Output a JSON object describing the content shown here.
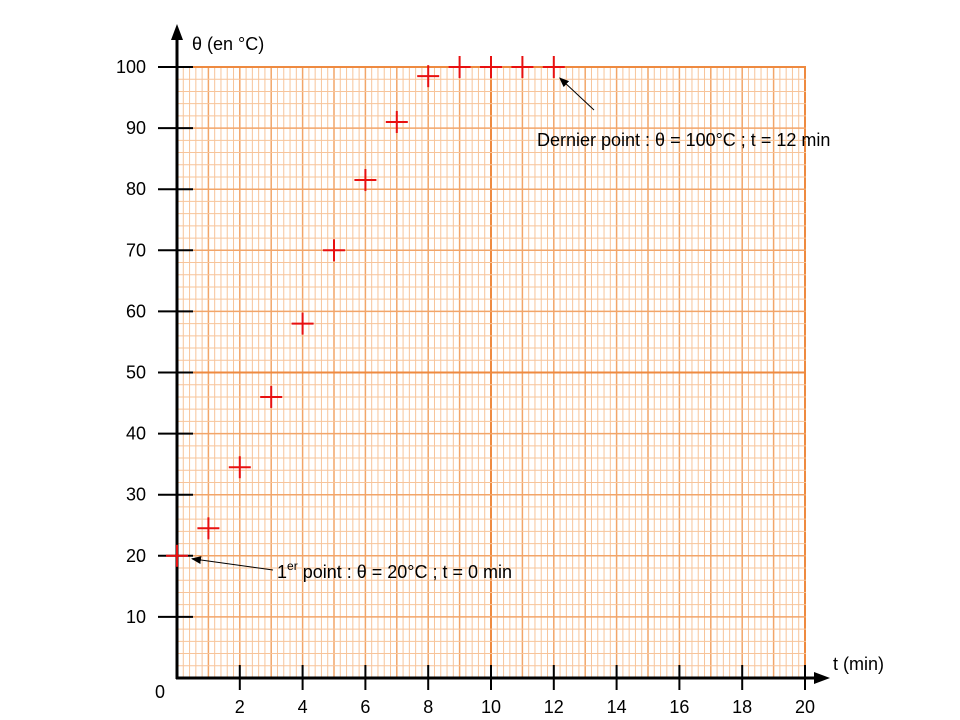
{
  "chart_data": {
    "type": "scatter",
    "title": "",
    "xlabel": "t (min)",
    "ylabel": "θ (en °C)",
    "xlim": [
      0,
      20
    ],
    "ylim": [
      0,
      100
    ],
    "origin_label": "0",
    "x_tick_values": [
      2,
      4,
      6,
      8,
      10,
      12,
      14,
      16,
      18,
      20
    ],
    "x_tick_labels": [
      "2",
      "4",
      "6",
      "8",
      "10",
      "12",
      "14",
      "16",
      "18",
      "20"
    ],
    "y_tick_values": [
      10,
      20,
      30,
      40,
      50,
      60,
      70,
      80,
      90,
      100
    ],
    "y_tick_labels": [
      "10",
      "20",
      "30",
      "40",
      "50",
      "60",
      "70",
      "80",
      "90",
      "100"
    ],
    "grid": true,
    "marker": "plus",
    "colors": {
      "grid_minor": "#f7c49a",
      "grid_major": "#ee8a40",
      "grid_medium": "#f2a569",
      "marker": "#e81010",
      "axis": "#000000"
    },
    "series": [
      {
        "x": [
          0,
          1,
          2,
          3,
          4,
          5,
          6,
          7,
          8,
          9,
          10,
          11,
          12
        ],
        "y": [
          20,
          24.5,
          34.5,
          46,
          58,
          70,
          81.5,
          91,
          98.5,
          100,
          100,
          100,
          100
        ]
      }
    ],
    "annotations": [
      {
        "id": "first",
        "text_prefix": "1",
        "text_sup": "er",
        "text_rest": " point : θ = 20°C ; t = 0 min",
        "target": [
          0,
          20
        ]
      },
      {
        "id": "last",
        "text_prefix": "Dernier point : θ = 100°C ; t = 12 min",
        "target": [
          12,
          100
        ]
      }
    ]
  }
}
